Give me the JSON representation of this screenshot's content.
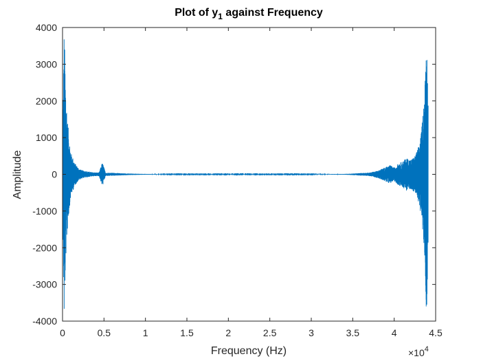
{
  "chart_data": {
    "type": "line",
    "title": {
      "prefix": "Plot of y",
      "subscript": "1",
      "suffix": " against Frequency"
    },
    "xlabel": "Frequency (Hz)",
    "ylabel": "Amplitude",
    "x_exponent": {
      "base": "×10",
      "power": "4"
    },
    "xlim": [
      0,
      4.5
    ],
    "ylim": [
      -4000,
      4000
    ],
    "x_ticks": [
      0,
      0.5,
      1,
      1.5,
      2,
      2.5,
      3,
      3.5,
      4,
      4.5
    ],
    "x_tick_labels": [
      "0",
      "0.5",
      "1",
      "1.5",
      "2",
      "2.5",
      "3",
      "3.5",
      "4",
      "4.5"
    ],
    "y_ticks": [
      -4000,
      -3000,
      -2000,
      -1000,
      0,
      1000,
      2000,
      3000,
      4000
    ],
    "y_tick_labels": [
      "-4000",
      "-3000",
      "-2000",
      "-1000",
      "0",
      "1000",
      "2000",
      "3000",
      "4000"
    ],
    "grid": false,
    "legend": "none",
    "series": [
      {
        "color": "#0072BD",
        "envelope": {
          "x": [
            0.0,
            0.02,
            0.04,
            0.06,
            0.08,
            0.1,
            0.15,
            0.2,
            0.25,
            0.3,
            0.35,
            0.4,
            0.5,
            0.6,
            0.7,
            0.8,
            0.9,
            1.0,
            1.1,
            1.2,
            1.3,
            1.4,
            1.5,
            1.6,
            1.7,
            1.8,
            1.9,
            2.0,
            2.5,
            3.0,
            3.4,
            3.5,
            3.6,
            3.7,
            3.8,
            3.9,
            3.95,
            4.0,
            4.05,
            4.1,
            4.15,
            4.2,
            4.25,
            4.3,
            4.33,
            4.35,
            4.37,
            4.39,
            4.41
          ],
          "amplitude": [
            1000,
            4000,
            2300,
            1500,
            1000,
            600,
            300,
            150,
            100,
            80,
            60,
            50,
            45,
            40,
            30,
            20,
            15,
            10,
            8,
            6,
            5,
            5,
            5,
            5,
            5,
            5,
            5,
            5,
            5,
            5,
            10,
            20,
            35,
            45,
            100,
            200,
            250,
            180,
            300,
            350,
            450,
            400,
            500,
            800,
            1200,
            1800,
            2400,
            4000,
            2000
          ]
        },
        "bumps": [
          {
            "x": 0.48,
            "amplitude": 300
          },
          {
            "x": 3.93,
            "amplitude": 200
          },
          {
            "x": 4.1,
            "amplitude": 300
          }
        ]
      }
    ]
  }
}
